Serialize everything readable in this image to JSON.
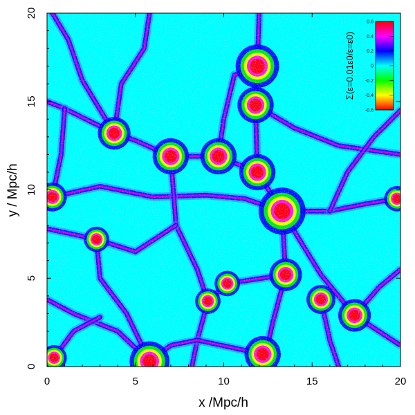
{
  "chart_data": {
    "type": "heatmap",
    "title": "",
    "xlabel": "x /Mpc/h",
    "ylabel": "y / Mpc/h",
    "xlim": [
      0,
      20
    ],
    "ylim": [
      0,
      20
    ],
    "x_ticks": [
      "0",
      "5",
      "10",
      "15",
      "20"
    ],
    "y_ticks": [
      "0",
      "5",
      "10",
      "15",
      "20"
    ],
    "grid": false,
    "colorbar": {
      "label": "Σ(ε=0.01ε0/ε=ε0)",
      "range": [
        -0.6,
        0.6
      ],
      "ticks": [
        "0.6",
        "0.4",
        "0.2",
        "0",
        "-0.2",
        "-0.4",
        "-0.6"
      ],
      "colors": [
        "#ff0000",
        "#ff00ff",
        "#0000ff",
        "#00ffff",
        "#00ff00",
        "#ffff00",
        "#ff0000"
      ]
    },
    "background_value": 0,
    "structures": {
      "nodes": [
        {
          "x": 13.3,
          "y": 8.8,
          "strength": 1.0
        },
        {
          "x": 11.9,
          "y": 17.0,
          "strength": 0.9
        },
        {
          "x": 11.8,
          "y": 14.8,
          "strength": 0.7
        },
        {
          "x": 11.9,
          "y": 11.0,
          "strength": 0.7
        },
        {
          "x": 9.7,
          "y": 11.9,
          "strength": 0.7
        },
        {
          "x": 7.0,
          "y": 11.9,
          "strength": 0.7
        },
        {
          "x": 3.8,
          "y": 13.2,
          "strength": 0.6
        },
        {
          "x": 5.8,
          "y": 0.3,
          "strength": 0.8
        },
        {
          "x": 12.2,
          "y": 0.7,
          "strength": 0.7
        },
        {
          "x": 13.5,
          "y": 5.2,
          "strength": 0.6
        },
        {
          "x": 17.4,
          "y": 2.9,
          "strength": 0.6
        },
        {
          "x": 15.5,
          "y": 3.8,
          "strength": 0.5
        },
        {
          "x": 0.3,
          "y": 9.6,
          "strength": 0.5
        },
        {
          "x": 2.8,
          "y": 7.2,
          "strength": 0.4
        },
        {
          "x": 19.8,
          "y": 9.5,
          "strength": 0.4
        },
        {
          "x": 10.2,
          "y": 4.7,
          "strength": 0.4
        },
        {
          "x": 9.1,
          "y": 3.7,
          "strength": 0.4
        },
        {
          "x": 0.4,
          "y": 0.5,
          "strength": 0.4
        }
      ],
      "filaments": [
        [
          [
            12.0,
            20.0
          ],
          [
            11.9,
            17.0
          ],
          [
            11.8,
            14.8
          ],
          [
            11.9,
            11.0
          ],
          [
            13.3,
            8.8
          ]
        ],
        [
          [
            13.3,
            8.8
          ],
          [
            15.5,
            5.2
          ],
          [
            17.4,
            2.9
          ],
          [
            20.0,
            1.2
          ]
        ],
        [
          [
            13.3,
            8.8
          ],
          [
            13.5,
            5.2
          ],
          [
            12.8,
            2.6
          ],
          [
            12.2,
            0.0
          ]
        ],
        [
          [
            11.9,
            11.0
          ],
          [
            9.7,
            11.9
          ],
          [
            7.0,
            11.9
          ],
          [
            5.0,
            12.8
          ],
          [
            3.8,
            13.2
          ],
          [
            1.0,
            14.6
          ],
          [
            0.0,
            15.0
          ]
        ],
        [
          [
            13.3,
            8.8
          ],
          [
            11.2,
            9.5
          ],
          [
            9.0,
            9.7
          ],
          [
            6.0,
            9.6
          ],
          [
            3.0,
            10.2
          ],
          [
            0.3,
            9.6
          ]
        ],
        [
          [
            13.3,
            8.8
          ],
          [
            16.0,
            8.8
          ],
          [
            18.0,
            9.2
          ],
          [
            19.8,
            9.5
          ]
        ],
        [
          [
            7.0,
            11.9
          ],
          [
            7.3,
            8.0
          ],
          [
            8.5,
            5.5
          ],
          [
            9.1,
            3.7
          ],
          [
            8.5,
            1.5
          ],
          [
            8.2,
            0.0
          ]
        ],
        [
          [
            0.0,
            7.8
          ],
          [
            2.8,
            7.2
          ],
          [
            5.0,
            6.5
          ],
          [
            7.3,
            8.0
          ]
        ],
        [
          [
            3.8,
            13.2
          ],
          [
            4.2,
            16.0
          ],
          [
            5.5,
            18.0
          ],
          [
            5.8,
            20.0
          ]
        ],
        [
          [
            3.8,
            13.2
          ],
          [
            2.0,
            16.2
          ],
          [
            1.2,
            18.5
          ],
          [
            0.3,
            20.0
          ]
        ],
        [
          [
            9.7,
            11.9
          ],
          [
            10.0,
            14.0
          ],
          [
            10.6,
            16.5
          ],
          [
            11.9,
            17.0
          ]
        ],
        [
          [
            5.8,
            0.3
          ],
          [
            4.0,
            2.0
          ],
          [
            1.5,
            3.0
          ],
          [
            0.0,
            3.8
          ]
        ],
        [
          [
            5.8,
            0.3
          ],
          [
            7.0,
            1.2
          ],
          [
            8.5,
            1.5
          ],
          [
            12.2,
            0.7
          ]
        ],
        [
          [
            2.8,
            7.2
          ],
          [
            3.0,
            5.0
          ],
          [
            4.5,
            3.0
          ],
          [
            5.8,
            0.3
          ]
        ],
        [
          [
            11.8,
            14.8
          ],
          [
            14.0,
            13.5
          ],
          [
            16.5,
            12.5
          ],
          [
            20.0,
            12.0
          ]
        ],
        [
          [
            0.4,
            0.5
          ],
          [
            1.5,
            2.0
          ],
          [
            3.0,
            2.8
          ]
        ],
        [
          [
            13.5,
            5.2
          ],
          [
            10.2,
            4.7
          ],
          [
            9.1,
            3.7
          ]
        ],
        [
          [
            15.5,
            3.8
          ],
          [
            16.0,
            1.5
          ],
          [
            16.5,
            0.0
          ]
        ],
        [
          [
            16.0,
            8.8
          ],
          [
            17.0,
            11.0
          ],
          [
            18.5,
            13.0
          ],
          [
            20.0,
            14.5
          ]
        ],
        [
          [
            1.0,
            14.6
          ],
          [
            0.8,
            12.0
          ],
          [
            0.3,
            9.6
          ]
        ],
        [
          [
            17.4,
            2.9
          ],
          [
            18.8,
            4.5
          ],
          [
            20.0,
            5.5
          ]
        ]
      ]
    }
  }
}
